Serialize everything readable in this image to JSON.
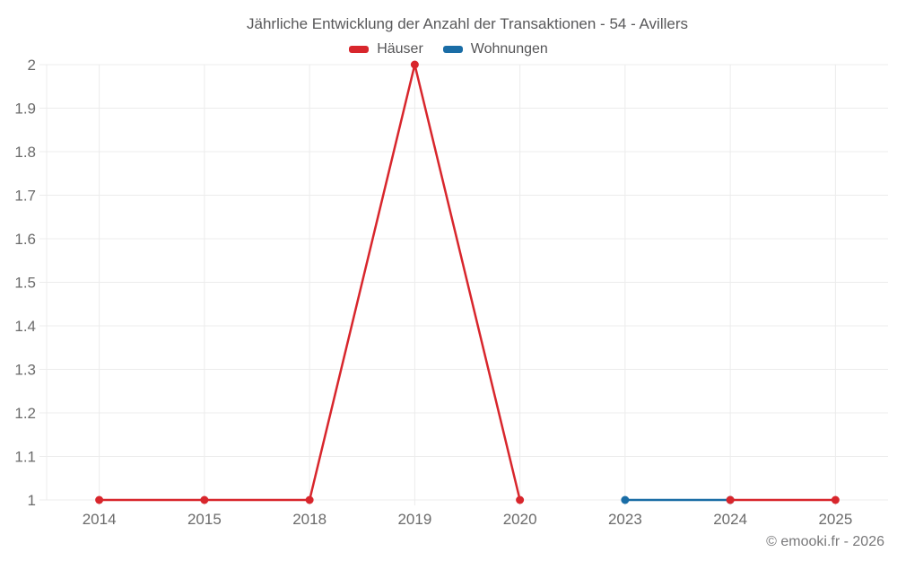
{
  "title": "Jährliche Entwicklung der Anzahl der Transaktionen - 54 - Avillers",
  "footer": "© emooki.fr - 2026",
  "chart_data": {
    "type": "line",
    "title": "Jährliche Entwicklung der Anzahl der Transaktionen - 54 - Avillers",
    "categories": [
      "2014",
      "2015",
      "2018",
      "2019",
      "2020",
      "2023",
      "2024",
      "2025"
    ],
    "series": [
      {
        "id": "haeuser",
        "name": "Häuser",
        "color": "#d8262c",
        "values": [
          1,
          1,
          1,
          2,
          1,
          null,
          1,
          1
        ]
      },
      {
        "id": "wohnungen",
        "name": "Wohnungen",
        "color": "#1a6da6",
        "values": [
          null,
          null,
          null,
          null,
          null,
          1,
          1,
          null
        ]
      }
    ],
    "xlabel": "",
    "ylabel": "",
    "ylim": [
      1,
      2
    ],
    "ytick_step": 0.1,
    "grid": true,
    "legend_position": "top",
    "grid_color": "#ececec",
    "tick_text_color": "#6b6b6b",
    "line_width": 2.5,
    "point_radius": 4.5
  }
}
